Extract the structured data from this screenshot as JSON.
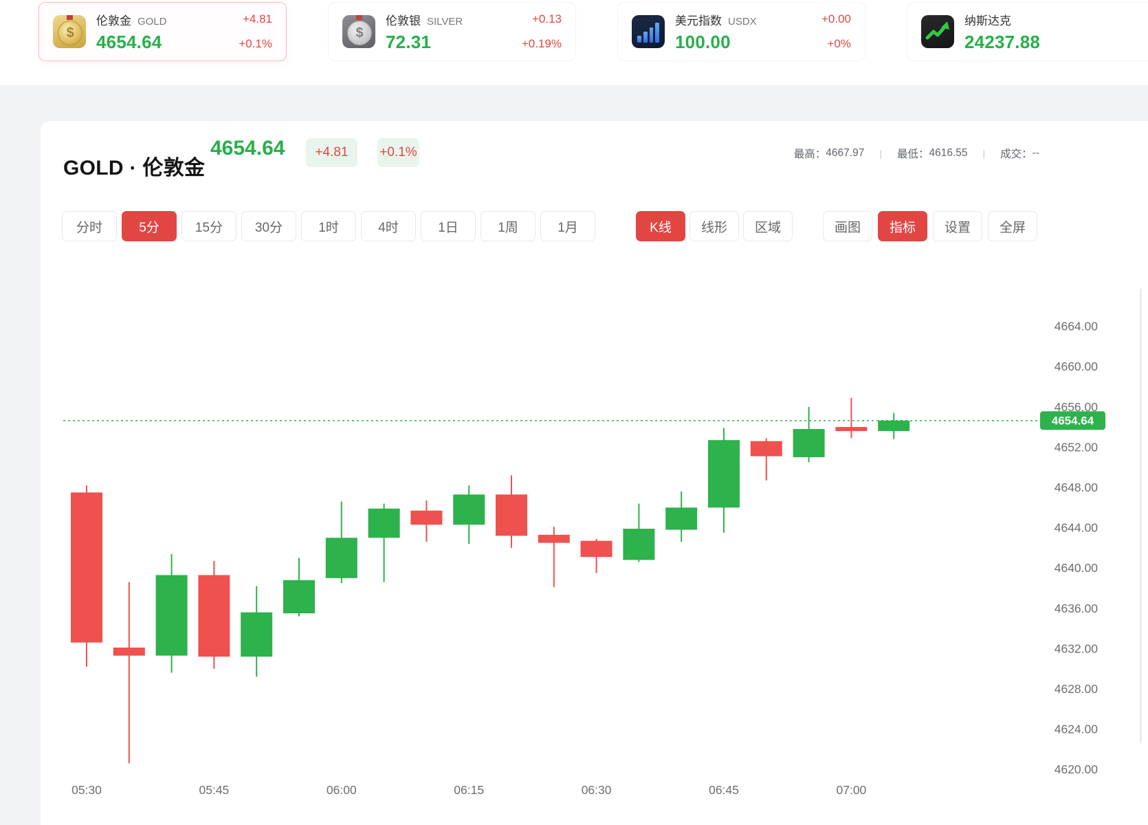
{
  "colors": {
    "up_green": "#2db24c",
    "down_red": "#ee514e",
    "accent_red": "#e24643",
    "price_green": "#27b04a",
    "badge_bg": "#e9f5ec",
    "axis_gray": "#6d6d70"
  },
  "tickers": [
    {
      "name": "伦敦金",
      "latin": "GOLD",
      "price": "4654.64",
      "change": "+4.81",
      "change_pct": "+0.1%",
      "icon": "gold-coin-icon",
      "selected": true
    },
    {
      "name": "伦敦银",
      "latin": "SILVER",
      "price": "72.31",
      "change": "+0.13",
      "change_pct": "+0.19%",
      "icon": "silver-coin-icon",
      "selected": false
    },
    {
      "name": "美元指数",
      "latin": "USDX",
      "price": "100.00",
      "change": "+0.00",
      "change_pct": "+0%",
      "icon": "bar-chart-icon",
      "selected": false
    },
    {
      "name": "纳斯达克",
      "latin": "",
      "price": "24237.88",
      "change": "",
      "change_pct": "",
      "icon": "trend-up-icon",
      "selected": false
    }
  ],
  "header": {
    "symbol": "GOLD · 伦敦金",
    "price": "4654.64",
    "change_badge": "+4.81",
    "change_pct_badge": "+0.1%",
    "high_label": "最高：",
    "high": "4667.97",
    "low_label": "最低：",
    "low": "4616.55",
    "volume_label": "成交：",
    "volume": "--",
    "separator": "|"
  },
  "toolbar": {
    "timeframes": [
      {
        "label": "分时",
        "active": false
      },
      {
        "label": "5分",
        "active": true
      },
      {
        "label": "15分",
        "active": false
      },
      {
        "label": "30分",
        "active": false
      },
      {
        "label": "1时",
        "active": false
      },
      {
        "label": "4时",
        "active": false
      },
      {
        "label": "1日",
        "active": false
      },
      {
        "label": "1周",
        "active": false
      },
      {
        "label": "1月",
        "active": false
      }
    ],
    "chart_types": [
      {
        "label": "K线",
        "active": true
      },
      {
        "label": "线形",
        "active": false
      },
      {
        "label": "区域",
        "active": false
      }
    ],
    "tools": [
      {
        "label": "画图",
        "active": false
      },
      {
        "label": "指标",
        "active": true
      },
      {
        "label": "设置",
        "active": false
      },
      {
        "label": "全屏",
        "active": false
      }
    ]
  },
  "chart_data": {
    "type": "candlestick",
    "title": "GOLD · 伦敦金 5分 K线",
    "y_ticks": [
      "4664.00",
      "4660.00",
      "4656.00",
      "4652.00",
      "4648.00",
      "4644.00",
      "4640.00",
      "4636.00",
      "4632.00",
      "4628.00",
      "4624.00",
      "4620.00"
    ],
    "y_min": 4620,
    "y_max": 4664,
    "y_step": 4,
    "x_labels": [
      "05:30",
      "05:45",
      "06:00",
      "06:15",
      "06:30",
      "06:45",
      "07:00"
    ],
    "current_price": 4654.64,
    "current_price_label": "4654.64",
    "grid": "off",
    "candles": [
      {
        "t": "05:30",
        "o": 4647.5,
        "h": 4648.2,
        "l": 4630.2,
        "c": 4632.6
      },
      {
        "t": "05:35",
        "o": 4632.1,
        "h": 4638.6,
        "l": 4620.6,
        "c": 4631.3
      },
      {
        "t": "05:40",
        "o": 4631.3,
        "h": 4641.4,
        "l": 4629.6,
        "c": 4639.3
      },
      {
        "t": "05:45",
        "o": 4639.3,
        "h": 4640.7,
        "l": 4630.0,
        "c": 4631.2
      },
      {
        "t": "05:50",
        "o": 4631.2,
        "h": 4638.2,
        "l": 4629.2,
        "c": 4635.6
      },
      {
        "t": "05:55",
        "o": 4635.5,
        "h": 4641.0,
        "l": 4635.2,
        "c": 4638.8
      },
      {
        "t": "06:00",
        "o": 4639.0,
        "h": 4646.6,
        "l": 4638.5,
        "c": 4643.0
      },
      {
        "t": "06:05",
        "o": 4643.0,
        "h": 4646.4,
        "l": 4638.6,
        "c": 4645.9
      },
      {
        "t": "06:10",
        "o": 4645.7,
        "h": 4646.7,
        "l": 4642.6,
        "c": 4644.3
      },
      {
        "t": "06:15",
        "o": 4644.3,
        "h": 4648.2,
        "l": 4642.4,
        "c": 4647.3
      },
      {
        "t": "06:20",
        "o": 4647.3,
        "h": 4649.2,
        "l": 4642.0,
        "c": 4643.2
      },
      {
        "t": "06:25",
        "o": 4643.3,
        "h": 4644.1,
        "l": 4638.1,
        "c": 4642.5
      },
      {
        "t": "06:30",
        "o": 4642.7,
        "h": 4642.9,
        "l": 4639.5,
        "c": 4641.1
      },
      {
        "t": "06:35",
        "o": 4640.8,
        "h": 4646.4,
        "l": 4640.6,
        "c": 4643.9
      },
      {
        "t": "06:40",
        "o": 4643.8,
        "h": 4647.6,
        "l": 4642.6,
        "c": 4646.0
      },
      {
        "t": "06:45",
        "o": 4646.0,
        "h": 4653.9,
        "l": 4643.5,
        "c": 4652.7
      },
      {
        "t": "06:50",
        "o": 4652.6,
        "h": 4652.9,
        "l": 4648.7,
        "c": 4651.1
      },
      {
        "t": "06:55",
        "o": 4651.0,
        "h": 4656.0,
        "l": 4650.5,
        "c": 4653.8
      },
      {
        "t": "07:00",
        "o": 4654.0,
        "h": 4656.9,
        "l": 4652.9,
        "c": 4653.6
      },
      {
        "t": "07:05",
        "o": 4653.6,
        "h": 4655.4,
        "l": 4652.8,
        "c": 4654.64
      }
    ]
  }
}
